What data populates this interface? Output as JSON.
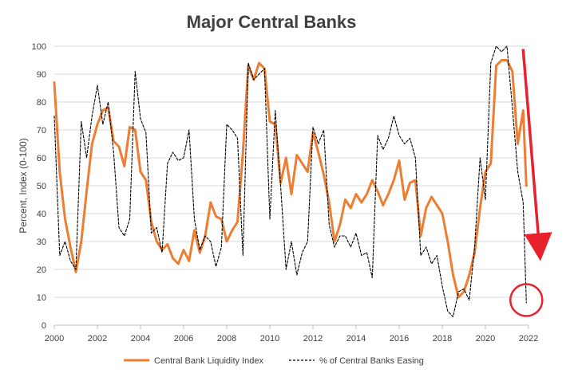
{
  "chart_data": {
    "type": "line",
    "title": "Major Central Banks",
    "xlabel": "",
    "ylabel": "Percent, Index (0-100)",
    "xlim": [
      2000,
      2022
    ],
    "ylim": [
      0,
      100
    ],
    "x_ticks": [
      "2000",
      "2002",
      "2004",
      "2006",
      "2008",
      "2010",
      "2012",
      "2014",
      "2016",
      "2018",
      "2020",
      "2022"
    ],
    "y_ticks": [
      "0",
      "10",
      "20",
      "30",
      "40",
      "50",
      "60",
      "70",
      "80",
      "90",
      "100"
    ],
    "grid": true,
    "legend_position": "bottom",
    "series": [
      {
        "name": "Central Bank Liquidity Index",
        "style": "solid",
        "color": "#ED7D31",
        "x": [
          2000.0,
          2000.25,
          2000.5,
          2000.75,
          2001.0,
          2001.25,
          2001.5,
          2001.75,
          2002.0,
          2002.25,
          2002.5,
          2002.75,
          2003.0,
          2003.25,
          2003.5,
          2003.75,
          2004.0,
          2004.25,
          2004.5,
          2004.75,
          2005.0,
          2005.25,
          2005.5,
          2005.75,
          2006.0,
          2006.25,
          2006.5,
          2006.75,
          2007.0,
          2007.25,
          2007.5,
          2007.75,
          2008.0,
          2008.25,
          2008.5,
          2008.75,
          2009.0,
          2009.25,
          2009.5,
          2009.75,
          2010.0,
          2010.25,
          2010.5,
          2010.75,
          2011.0,
          2011.25,
          2011.5,
          2011.75,
          2012.0,
          2012.25,
          2012.5,
          2012.75,
          2013.0,
          2013.25,
          2013.5,
          2013.75,
          2014.0,
          2014.25,
          2014.5,
          2014.75,
          2015.0,
          2015.25,
          2015.5,
          2015.75,
          2016.0,
          2016.25,
          2016.5,
          2016.75,
          2017.0,
          2017.25,
          2017.5,
          2017.75,
          2018.0,
          2018.25,
          2018.5,
          2018.75,
          2019.0,
          2019.25,
          2019.5,
          2019.75,
          2020.0,
          2020.25,
          2020.5,
          2020.75,
          2021.0,
          2021.25,
          2021.5,
          2021.75,
          2021.9
        ],
        "values": [
          87,
          55,
          38,
          28,
          19,
          30,
          48,
          65,
          72,
          77,
          78,
          66,
          64,
          57,
          71,
          70,
          55,
          52,
          37,
          30,
          27,
          29,
          24,
          22,
          27,
          23,
          34,
          26,
          32,
          44,
          39,
          38,
          30,
          34,
          37,
          62,
          93,
          88,
          94,
          92,
          73,
          72,
          51,
          60,
          47,
          61,
          58,
          55,
          69,
          62,
          54,
          44,
          30,
          36,
          45,
          42,
          47,
          44,
          47,
          52,
          48,
          43,
          47,
          52,
          59,
          45,
          51,
          52,
          32,
          42,
          46,
          43,
          40,
          30,
          18,
          10,
          12,
          18,
          26,
          42,
          55,
          58,
          93,
          95,
          95,
          91,
          65,
          77,
          50
        ]
      },
      {
        "name": "% of Central Banks Easing",
        "style": "dashed",
        "color": "#000000",
        "x": [
          2000.0,
          2000.25,
          2000.5,
          2000.75,
          2001.0,
          2001.25,
          2001.5,
          2001.75,
          2002.0,
          2002.25,
          2002.5,
          2002.75,
          2003.0,
          2003.25,
          2003.5,
          2003.75,
          2004.0,
          2004.25,
          2004.5,
          2004.75,
          2005.0,
          2005.25,
          2005.5,
          2005.75,
          2006.0,
          2006.25,
          2006.5,
          2006.75,
          2007.0,
          2007.25,
          2007.5,
          2007.75,
          2008.0,
          2008.25,
          2008.5,
          2008.75,
          2009.0,
          2009.25,
          2009.5,
          2009.75,
          2010.0,
          2010.25,
          2010.5,
          2010.75,
          2011.0,
          2011.25,
          2011.5,
          2011.75,
          2012.0,
          2012.25,
          2012.5,
          2012.75,
          2013.0,
          2013.25,
          2013.5,
          2013.75,
          2014.0,
          2014.25,
          2014.5,
          2014.75,
          2015.0,
          2015.25,
          2015.5,
          2015.75,
          2016.0,
          2016.25,
          2016.5,
          2016.75,
          2017.0,
          2017.25,
          2017.5,
          2017.75,
          2018.0,
          2018.25,
          2018.5,
          2018.75,
          2019.0,
          2019.25,
          2019.5,
          2019.75,
          2020.0,
          2020.25,
          2020.5,
          2020.75,
          2021.0,
          2021.25,
          2021.5,
          2021.75,
          2021.9
        ],
        "values": [
          75,
          25,
          30,
          23,
          20,
          73,
          60,
          75,
          86,
          72,
          80,
          62,
          35,
          32,
          38,
          91,
          74,
          69,
          33,
          35,
          26,
          58,
          62,
          59,
          60,
          70,
          38,
          27,
          32,
          30,
          21,
          28,
          72,
          70,
          67,
          25,
          94,
          88,
          90,
          92,
          38,
          77,
          50,
          20,
          30,
          18,
          26,
          30,
          71,
          65,
          70,
          36,
          28,
          32,
          32,
          28,
          33,
          25,
          26,
          17,
          68,
          63,
          67,
          75,
          68,
          65,
          67,
          60,
          25,
          28,
          22,
          25,
          14,
          5,
          3,
          12,
          13,
          9,
          28,
          60,
          45,
          94,
          100,
          98,
          100,
          78,
          55,
          44,
          8
        ]
      }
    ],
    "annotations": [
      {
        "type": "arrow",
        "color": "#E8212E",
        "from": [
          2021.75,
          99
        ],
        "to": [
          2022.5,
          28
        ]
      },
      {
        "type": "circle",
        "color": "#E8212E",
        "center": [
          2021.9,
          9
        ]
      }
    ]
  }
}
